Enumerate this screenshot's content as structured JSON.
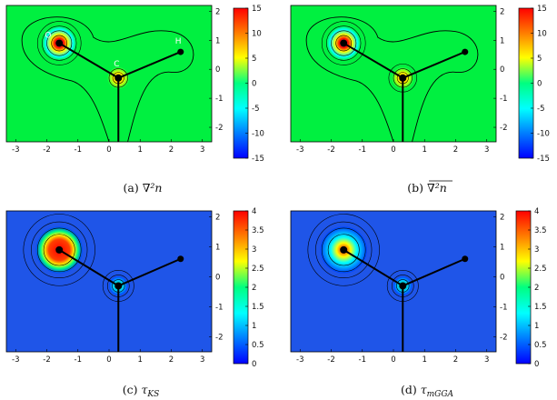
{
  "panels": [
    {
      "id": "a",
      "caption_letter": "(a)",
      "caption_math": "∇²n",
      "colorbar": {
        "min": -15,
        "max": 15,
        "ticks": [
          "15",
          "10",
          "5",
          "0",
          "-5",
          "-10",
          "-15"
        ],
        "colors": [
          "#ff0000",
          "#ff8000",
          "#ffff00",
          "#00ff80",
          "#00ffff",
          "#0080ff",
          "#0000ff"
        ]
      },
      "labels": {
        "O": "O",
        "H": "H",
        "C": "C"
      },
      "x_ticks": [
        "-3",
        "-2",
        "-1",
        "0",
        "1",
        "2",
        "3"
      ],
      "y_ticks": [
        "2",
        "1",
        "0",
        "-1",
        "-2"
      ]
    },
    {
      "id": "b",
      "caption_letter": "(b)",
      "caption_math": "∇²n",
      "colorbar": {
        "min": -15,
        "max": 15,
        "ticks": [
          "15",
          "10",
          "5",
          "0",
          "-5",
          "-10",
          "-15"
        ],
        "colors": [
          "#ff0000",
          "#ff8000",
          "#ffff00",
          "#00ff80",
          "#00ffff",
          "#0080ff",
          "#0000ff"
        ]
      },
      "x_ticks": [
        "-3",
        "-2",
        "-1",
        "0",
        "1",
        "2",
        "3"
      ],
      "y_ticks": [
        "2",
        "1",
        "0",
        "-1",
        "-2"
      ]
    },
    {
      "id": "c",
      "caption_letter": "(c)",
      "caption_math": "τ",
      "caption_sub": "KS",
      "colorbar": {
        "min": 0,
        "max": 4,
        "ticks": [
          "4",
          "3.5",
          "3",
          "2.5",
          "2",
          "1.5",
          "1",
          "0.5",
          "0"
        ],
        "colors": [
          "#ff0000",
          "#ff8000",
          "#ffff00",
          "#00ff80",
          "#00ffff",
          "#0080ff",
          "#0000ff"
        ]
      },
      "x_ticks": [
        "-3",
        "-2",
        "-1",
        "0",
        "1",
        "2",
        "3"
      ],
      "y_ticks": [
        "2",
        "1",
        "0",
        "-1",
        "-2"
      ]
    },
    {
      "id": "d",
      "caption_letter": "(d)",
      "caption_math": "τ",
      "caption_sub": "mGGA",
      "colorbar": {
        "min": 0,
        "max": 4,
        "ticks": [
          "4",
          "3.5",
          "3",
          "2.5",
          "2",
          "1.5",
          "1",
          "0.5",
          "0"
        ],
        "colors": [
          "#ff0000",
          "#ff8000",
          "#ffff00",
          "#00ff80",
          "#00ffff",
          "#0080ff",
          "#0000ff"
        ]
      },
      "x_ticks": [
        "-3",
        "-2",
        "-1",
        "0",
        "1",
        "2",
        "3"
      ],
      "y_ticks": [
        "2",
        "1",
        "0",
        "-1",
        "-2"
      ]
    }
  ]
}
